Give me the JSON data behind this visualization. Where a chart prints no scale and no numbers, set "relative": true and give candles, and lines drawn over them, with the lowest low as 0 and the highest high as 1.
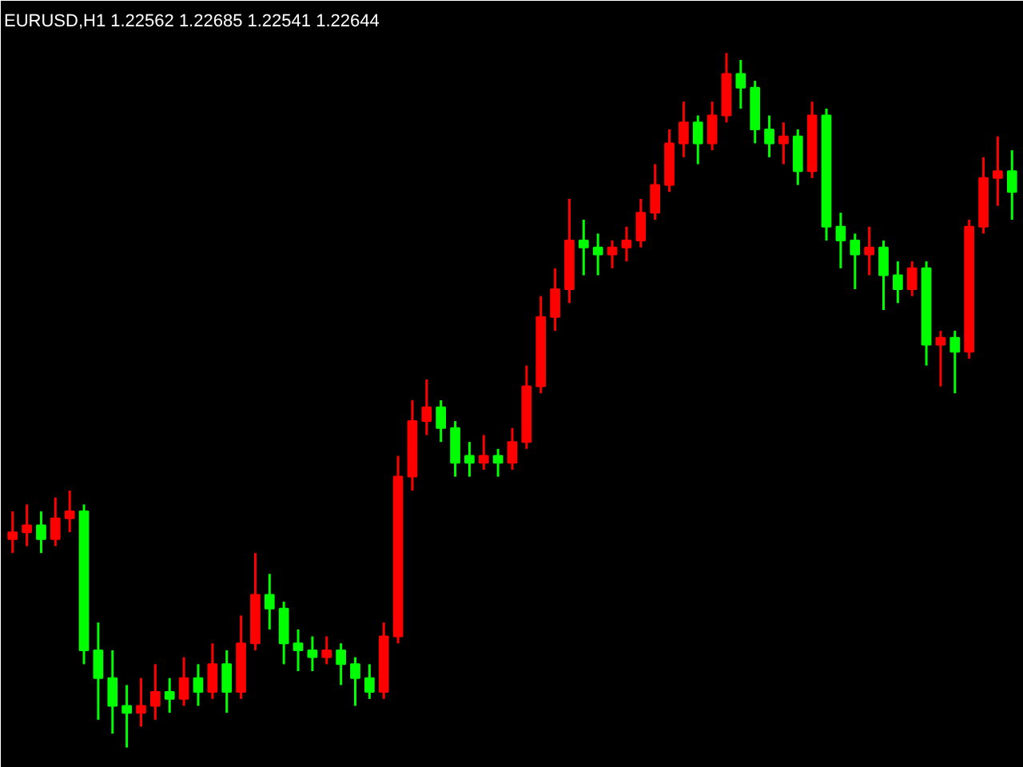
{
  "chart_data": {
    "type": "candlestick",
    "title": "EURUSD,H1  1.22562 1.22685 1.22541 1.22644",
    "relative": true,
    "grid": false,
    "categories": [
      null,
      null,
      null,
      null,
      null,
      null,
      null,
      null,
      null,
      null,
      null,
      null,
      null,
      null,
      null,
      null,
      null,
      null,
      null,
      null,
      null,
      null,
      null,
      null,
      null,
      null,
      null,
      null,
      null,
      null,
      null,
      null,
      null,
      null,
      null,
      null,
      null,
      null,
      null,
      null,
      null,
      null,
      null,
      null,
      null,
      null,
      null,
      null,
      null,
      null,
      null,
      null,
      null,
      null,
      null,
      null,
      null,
      null,
      null,
      null,
      null,
      null,
      null,
      null,
      null,
      null,
      null,
      null,
      null,
      null,
      null
    ],
    "ohlc": [
      [
        0.3,
        0.34,
        0.28,
        0.31
      ],
      [
        0.31,
        0.35,
        0.29,
        0.32
      ],
      [
        0.32,
        0.34,
        0.28,
        0.3
      ],
      [
        0.3,
        0.36,
        0.29,
        0.33
      ],
      [
        0.33,
        0.37,
        0.31,
        0.34
      ],
      [
        0.34,
        0.35,
        0.12,
        0.14
      ],
      [
        0.14,
        0.18,
        0.04,
        0.1
      ],
      [
        0.1,
        0.14,
        0.02,
        0.06
      ],
      [
        0.06,
        0.09,
        0.0,
        0.05
      ],
      [
        0.05,
        0.1,
        0.03,
        0.06
      ],
      [
        0.06,
        0.12,
        0.04,
        0.08
      ],
      [
        0.08,
        0.1,
        0.05,
        0.07
      ],
      [
        0.07,
        0.13,
        0.06,
        0.1
      ],
      [
        0.1,
        0.12,
        0.06,
        0.08
      ],
      [
        0.08,
        0.15,
        0.07,
        0.12
      ],
      [
        0.12,
        0.14,
        0.05,
        0.08
      ],
      [
        0.08,
        0.19,
        0.07,
        0.15
      ],
      [
        0.15,
        0.28,
        0.14,
        0.22
      ],
      [
        0.22,
        0.25,
        0.17,
        0.2
      ],
      [
        0.2,
        0.21,
        0.12,
        0.15
      ],
      [
        0.15,
        0.17,
        0.11,
        0.14
      ],
      [
        0.14,
        0.16,
        0.11,
        0.13
      ],
      [
        0.13,
        0.16,
        0.12,
        0.14
      ],
      [
        0.14,
        0.15,
        0.09,
        0.12
      ],
      [
        0.12,
        0.13,
        0.06,
        0.1
      ],
      [
        0.1,
        0.12,
        0.07,
        0.08
      ],
      [
        0.08,
        0.18,
        0.07,
        0.16
      ],
      [
        0.16,
        0.42,
        0.15,
        0.39
      ],
      [
        0.39,
        0.5,
        0.37,
        0.47
      ],
      [
        0.47,
        0.53,
        0.45,
        0.49
      ],
      [
        0.49,
        0.5,
        0.44,
        0.46
      ],
      [
        0.46,
        0.47,
        0.39,
        0.41
      ],
      [
        0.42,
        0.44,
        0.39,
        0.41
      ],
      [
        0.41,
        0.45,
        0.4,
        0.42
      ],
      [
        0.42,
        0.43,
        0.39,
        0.41
      ],
      [
        0.41,
        0.46,
        0.4,
        0.44
      ],
      [
        0.44,
        0.55,
        0.43,
        0.52
      ],
      [
        0.52,
        0.65,
        0.51,
        0.62
      ],
      [
        0.62,
        0.69,
        0.6,
        0.66
      ],
      [
        0.66,
        0.79,
        0.64,
        0.73
      ],
      [
        0.73,
        0.76,
        0.68,
        0.72
      ],
      [
        0.72,
        0.74,
        0.68,
        0.71
      ],
      [
        0.71,
        0.73,
        0.69,
        0.72
      ],
      [
        0.72,
        0.75,
        0.7,
        0.73
      ],
      [
        0.73,
        0.79,
        0.72,
        0.77
      ],
      [
        0.77,
        0.84,
        0.76,
        0.81
      ],
      [
        0.81,
        0.89,
        0.8,
        0.87
      ],
      [
        0.87,
        0.93,
        0.85,
        0.9
      ],
      [
        0.9,
        0.91,
        0.84,
        0.87
      ],
      [
        0.87,
        0.93,
        0.86,
        0.91
      ],
      [
        0.91,
        1.0,
        0.9,
        0.97
      ],
      [
        0.97,
        0.99,
        0.92,
        0.95
      ],
      [
        0.95,
        0.96,
        0.87,
        0.89
      ],
      [
        0.89,
        0.91,
        0.85,
        0.87
      ],
      [
        0.87,
        0.9,
        0.84,
        0.88
      ],
      [
        0.88,
        0.89,
        0.81,
        0.83
      ],
      [
        0.83,
        0.93,
        0.82,
        0.91
      ],
      [
        0.91,
        0.92,
        0.73,
        0.75
      ],
      [
        0.75,
        0.77,
        0.69,
        0.73
      ],
      [
        0.73,
        0.74,
        0.66,
        0.71
      ],
      [
        0.71,
        0.75,
        0.68,
        0.72
      ],
      [
        0.72,
        0.73,
        0.63,
        0.68
      ],
      [
        0.68,
        0.7,
        0.64,
        0.66
      ],
      [
        0.66,
        0.7,
        0.65,
        0.69
      ],
      [
        0.69,
        0.7,
        0.55,
        0.58
      ],
      [
        0.58,
        0.6,
        0.52,
        0.59
      ],
      [
        0.59,
        0.6,
        0.51,
        0.57
      ],
      [
        0.57,
        0.76,
        0.56,
        0.75
      ],
      [
        0.75,
        0.85,
        0.74,
        0.82
      ],
      [
        0.82,
        0.88,
        0.78,
        0.83
      ],
      [
        0.83,
        0.86,
        0.76,
        0.8
      ]
    ],
    "colors": [
      "#ff0000",
      "#ff0000",
      "#00ff00",
      "#ff0000",
      "#ff0000",
      "#00ff00",
      "#00ff00",
      "#00ff00",
      "#00ff00",
      "#ff0000",
      "#ff0000",
      "#00ff00",
      "#ff0000",
      "#00ff00",
      "#ff0000",
      "#00ff00",
      "#ff0000",
      "#ff0000",
      "#00ff00",
      "#00ff00",
      "#00ff00",
      "#00ff00",
      "#ff0000",
      "#00ff00",
      "#00ff00",
      "#00ff00",
      "#ff0000",
      "#ff0000",
      "#ff0000",
      "#ff0000",
      "#00ff00",
      "#00ff00",
      "#00ff00",
      "#ff0000",
      "#00ff00",
      "#ff0000",
      "#ff0000",
      "#ff0000",
      "#ff0000",
      "#ff0000",
      "#00ff00",
      "#00ff00",
      "#ff0000",
      "#ff0000",
      "#ff0000",
      "#ff0000",
      "#ff0000",
      "#ff0000",
      "#00ff00",
      "#ff0000",
      "#ff0000",
      "#00ff00",
      "#00ff00",
      "#00ff00",
      "#ff0000",
      "#00ff00",
      "#ff0000",
      "#00ff00",
      "#00ff00",
      "#00ff00",
      "#ff0000",
      "#00ff00",
      "#00ff00",
      "#ff0000",
      "#00ff00",
      "#ff0000",
      "#00ff00",
      "#ff0000",
      "#ff0000",
      "#ff0000",
      "#00ff00"
    ]
  }
}
